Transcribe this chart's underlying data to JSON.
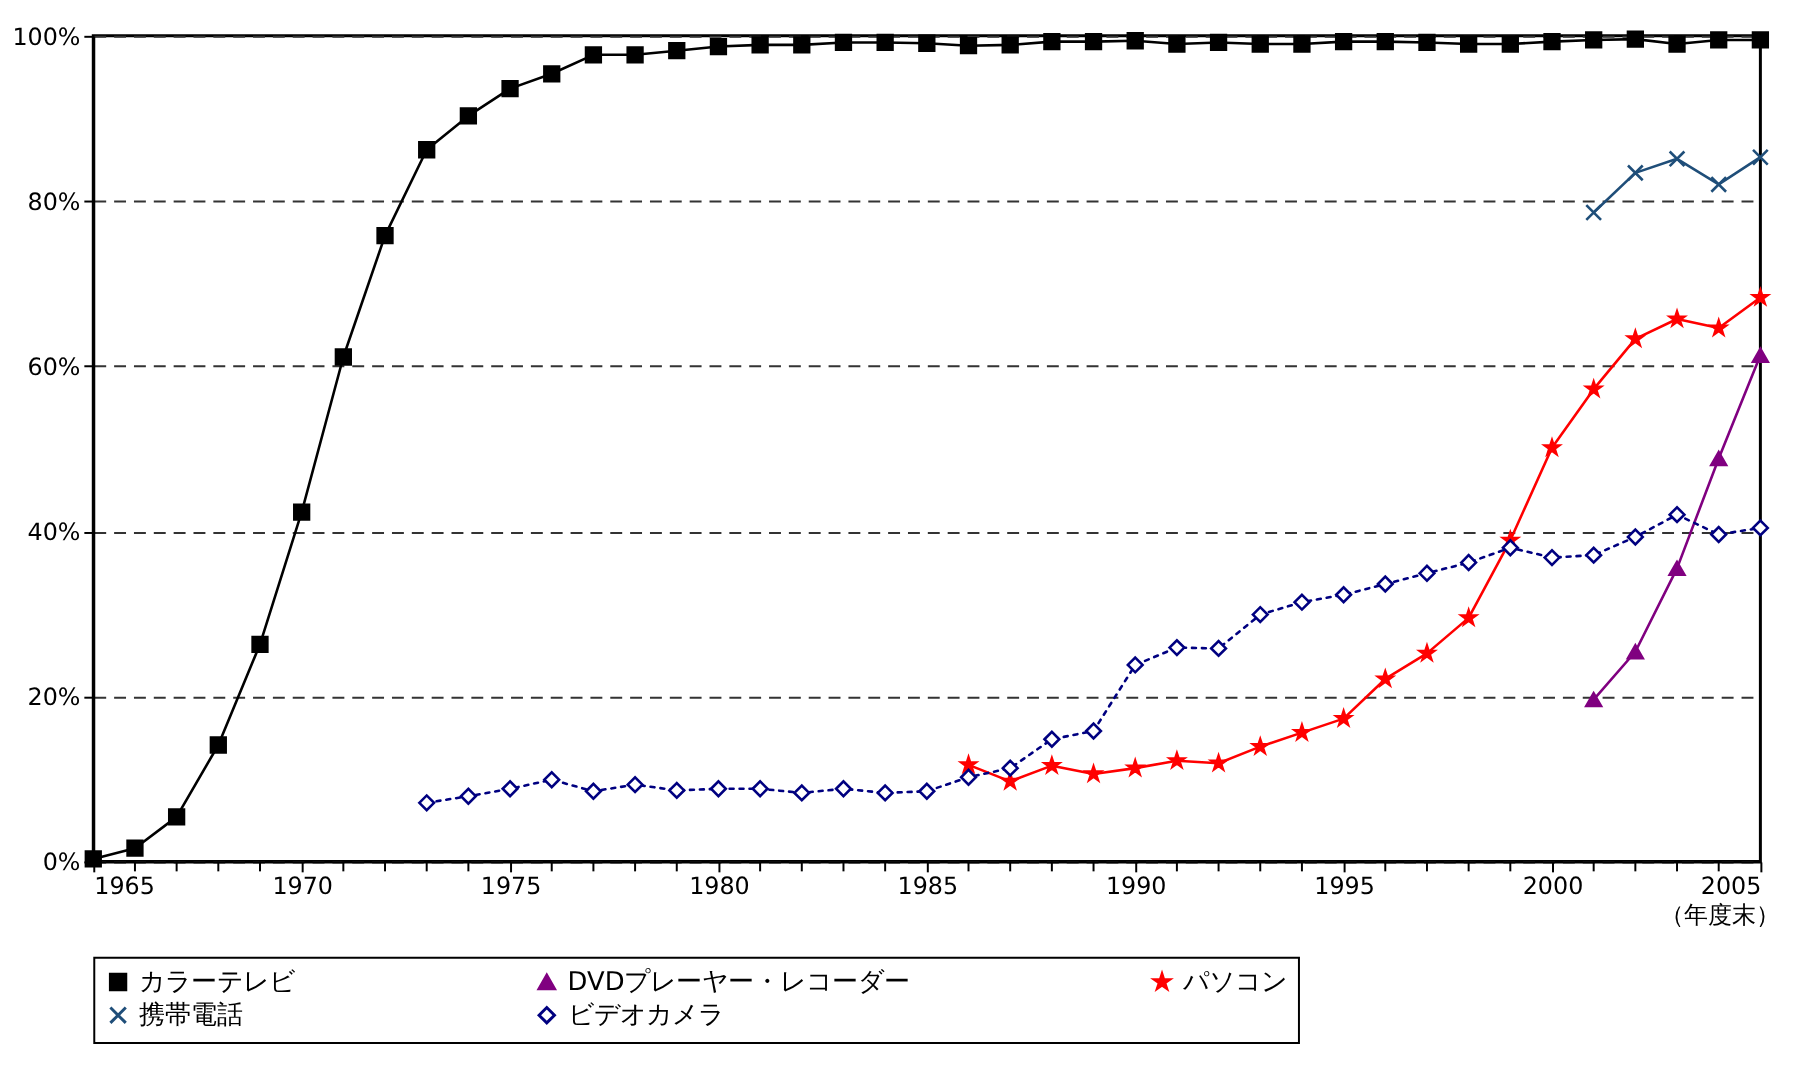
{
  "chart_data": {
    "type": "line",
    "annotations": [
      "（年度末）"
    ],
    "xlim": [
      1965,
      2005
    ],
    "xticks": [
      1965,
      {
        "value": 1966,
        "label": null
      },
      {
        "value": 1967,
        "label": null
      },
      {
        "value": 1968,
        "label": null
      },
      {
        "value": 1969,
        "label": null
      },
      1970,
      {
        "value": 1971,
        "label": null
      },
      {
        "value": 1972,
        "label": null
      },
      {
        "value": 1973,
        "label": null
      },
      {
        "value": 1974,
        "label": null
      },
      1975,
      {
        "value": 1976,
        "label": null
      },
      {
        "value": 1977,
        "label": null
      },
      {
        "value": 1978,
        "label": null
      },
      {
        "value": 1979,
        "label": null
      },
      1980,
      {
        "value": 1981,
        "label": null
      },
      {
        "value": 1982,
        "label": null
      },
      {
        "value": 1983,
        "label": null
      },
      {
        "value": 1984,
        "label": null
      },
      1985,
      {
        "value": 1986,
        "label": null
      },
      {
        "value": 1987,
        "label": null
      },
      {
        "value": 1988,
        "label": null
      },
      {
        "value": 1989,
        "label": null
      },
      1990,
      {
        "value": 1991,
        "label": null
      },
      {
        "value": 1992,
        "label": null
      },
      {
        "value": 1993,
        "label": null
      },
      {
        "value": 1994,
        "label": null
      },
      1995,
      {
        "value": 1996,
        "label": null
      },
      {
        "value": 1997,
        "label": null
      },
      {
        "value": 1998,
        "label": null
      },
      {
        "value": 1999,
        "label": null
      },
      2000,
      {
        "value": 2001,
        "label": null
      },
      {
        "value": 2002,
        "label": null
      },
      {
        "value": 2003,
        "label": null
      },
      {
        "value": 2004,
        "label": null
      },
      2005
    ],
    "ylim": [
      0,
      100
    ],
    "yticks": [
      {
        "value": 0,
        "label": "0%"
      },
      {
        "value": 20,
        "label": "20%"
      },
      {
        "value": 40,
        "label": "40%"
      },
      {
        "value": 60,
        "label": "60%"
      },
      {
        "value": 80,
        "label": "80%"
      },
      {
        "value": 100,
        "label": "100%"
      }
    ],
    "grid": "y",
    "legend": "bottom",
    "series": [
      {
        "name": "カラーテレビ",
        "color": "#000000",
        "marker": "square",
        "line_style": "solid",
        "x": [
          1965,
          1966,
          1967,
          1968,
          1969,
          1970,
          1971,
          1972,
          1973,
          1974,
          1975,
          1976,
          1977,
          1978,
          1979,
          1980,
          1981,
          1982,
          1983,
          1984,
          1985,
          1986,
          1987,
          1988,
          1989,
          1990,
          1991,
          1992,
          1993,
          1994,
          1995,
          1996,
          1997,
          1998,
          1999,
          2000,
          2001,
          2002,
          2003,
          2004,
          2005
        ],
        "values": [
          0.3,
          1.6,
          5.4,
          14.1,
          26.3,
          42.3,
          61.1,
          75.8,
          86.2,
          90.3,
          93.6,
          95.4,
          97.7,
          97.7,
          98.2,
          98.7,
          98.9,
          98.9,
          99.2,
          99.2,
          99.1,
          98.8,
          98.9,
          99.3,
          99.3,
          99.4,
          99.0,
          99.2,
          99.0,
          99.0,
          99.3,
          99.3,
          99.2,
          99.0,
          99.0,
          99.3,
          99.5,
          99.6,
          99.0,
          99.5,
          99.5
        ]
      },
      {
        "name": "DVDプレーヤー・レコーダー",
        "color": "#800080",
        "marker": "triangle",
        "line_style": "solid",
        "x": [
          2001,
          2002,
          2003,
          2004,
          2005
        ],
        "values": [
          19.6,
          25.4,
          35.5,
          48.8,
          61.3
        ]
      },
      {
        "name": "パソコン",
        "color": "#ff0000",
        "marker": "star",
        "line_style": "solid",
        "x": [
          1986,
          1987,
          1988,
          1989,
          1990,
          1991,
          1992,
          1993,
          1994,
          1995,
          1996,
          1997,
          1998,
          1999,
          2000,
          2001,
          2002,
          2003,
          2004,
          2005
        ],
        "values": [
          11.7,
          9.7,
          11.6,
          10.6,
          11.3,
          12.2,
          11.9,
          13.9,
          15.6,
          17.3,
          22.1,
          25.2,
          29.5,
          38.9,
          50.1,
          57.2,
          63.3,
          65.7,
          64.6,
          68.3
        ]
      },
      {
        "name": "携帯電話",
        "color": "#1f4e79",
        "marker": "cross",
        "line_style": "solid",
        "x": [
          2001,
          2002,
          2003,
          2004,
          2005
        ],
        "values": [
          78.6,
          83.4,
          85.1,
          82.0,
          85.3
        ]
      },
      {
        "name": "ビデオカメラ",
        "color": "#000080",
        "marker": "diamond",
        "line_style": "dotted",
        "x": [
          1973,
          1974,
          1975,
          1976,
          1977,
          1978,
          1979,
          1980,
          1981,
          1982,
          1983,
          1984,
          1985,
          1986,
          1987,
          1988,
          1989,
          1990,
          1991,
          1992,
          1993,
          1994,
          1995,
          1996,
          1997,
          1998,
          1999,
          2000,
          2001,
          2002,
          2003,
          2004,
          2005
        ],
        "values": [
          7.1,
          7.9,
          8.8,
          9.9,
          8.5,
          9.3,
          8.6,
          8.8,
          8.8,
          8.3,
          8.8,
          8.3,
          8.5,
          10.2,
          11.3,
          14.8,
          15.8,
          23.8,
          25.9,
          25.8,
          29.9,
          31.4,
          32.3,
          33.6,
          34.9,
          36.2,
          38.0,
          36.8,
          37.1,
          39.3,
          42.0,
          39.6,
          40.4
        ]
      }
    ]
  }
}
